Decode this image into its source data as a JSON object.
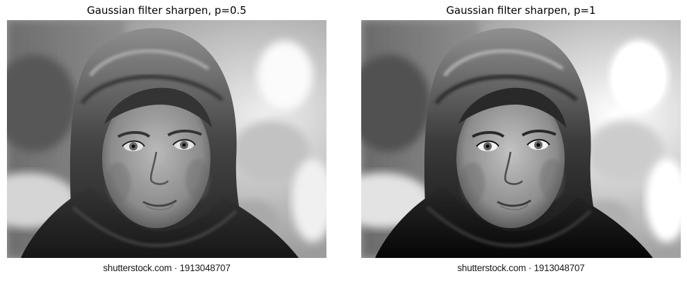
{
  "panels": [
    {
      "title": "Gaussian filter sharpen, p=0.5",
      "watermark": "shutterstock.com · 1913048707",
      "subject": "girl-in-headscarf-photo"
    },
    {
      "title": "Gaussian filter sharpen, p=1",
      "watermark": "shutterstock.com · 1913048707",
      "subject": "girl-in-headscarf-photo"
    }
  ],
  "colors": {
    "background": "#ffffff",
    "title_text": "#000000"
  }
}
